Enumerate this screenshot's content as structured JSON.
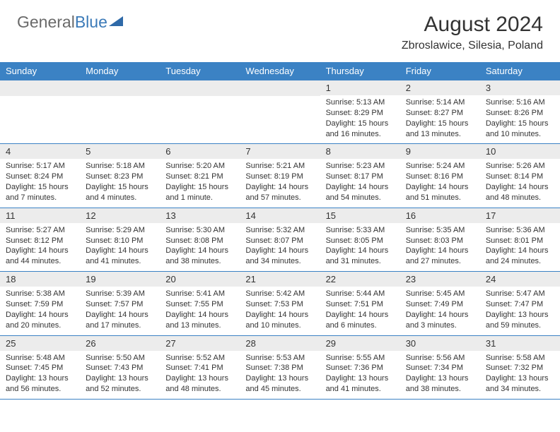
{
  "logo": {
    "general": "General",
    "blue": "Blue"
  },
  "title": "August 2024",
  "location": "Zbroslawice, Silesia, Poland",
  "colors": {
    "header_bg": "#3b82c4",
    "header_fg": "#ffffff",
    "daynum_bg": "#ececec",
    "text": "#333333",
    "rule": "#3b82c4",
    "logo_gray": "#6a6a6a",
    "logo_blue": "#3b7ab8",
    "page_bg": "#ffffff"
  },
  "typography": {
    "title_fontsize": 30,
    "location_fontsize": 16,
    "dow_fontsize": 13,
    "daynum_fontsize": 13,
    "body_fontsize": 11
  },
  "days_of_week": [
    "Sunday",
    "Monday",
    "Tuesday",
    "Wednesday",
    "Thursday",
    "Friday",
    "Saturday"
  ],
  "weeks": [
    [
      null,
      null,
      null,
      null,
      {
        "n": "1",
        "sunrise": "Sunrise: 5:13 AM",
        "sunset": "Sunset: 8:29 PM",
        "daylight": "Daylight: 15 hours and 16 minutes."
      },
      {
        "n": "2",
        "sunrise": "Sunrise: 5:14 AM",
        "sunset": "Sunset: 8:27 PM",
        "daylight": "Daylight: 15 hours and 13 minutes."
      },
      {
        "n": "3",
        "sunrise": "Sunrise: 5:16 AM",
        "sunset": "Sunset: 8:26 PM",
        "daylight": "Daylight: 15 hours and 10 minutes."
      }
    ],
    [
      {
        "n": "4",
        "sunrise": "Sunrise: 5:17 AM",
        "sunset": "Sunset: 8:24 PM",
        "daylight": "Daylight: 15 hours and 7 minutes."
      },
      {
        "n": "5",
        "sunrise": "Sunrise: 5:18 AM",
        "sunset": "Sunset: 8:23 PM",
        "daylight": "Daylight: 15 hours and 4 minutes."
      },
      {
        "n": "6",
        "sunrise": "Sunrise: 5:20 AM",
        "sunset": "Sunset: 8:21 PM",
        "daylight": "Daylight: 15 hours and 1 minute."
      },
      {
        "n": "7",
        "sunrise": "Sunrise: 5:21 AM",
        "sunset": "Sunset: 8:19 PM",
        "daylight": "Daylight: 14 hours and 57 minutes."
      },
      {
        "n": "8",
        "sunrise": "Sunrise: 5:23 AM",
        "sunset": "Sunset: 8:17 PM",
        "daylight": "Daylight: 14 hours and 54 minutes."
      },
      {
        "n": "9",
        "sunrise": "Sunrise: 5:24 AM",
        "sunset": "Sunset: 8:16 PM",
        "daylight": "Daylight: 14 hours and 51 minutes."
      },
      {
        "n": "10",
        "sunrise": "Sunrise: 5:26 AM",
        "sunset": "Sunset: 8:14 PM",
        "daylight": "Daylight: 14 hours and 48 minutes."
      }
    ],
    [
      {
        "n": "11",
        "sunrise": "Sunrise: 5:27 AM",
        "sunset": "Sunset: 8:12 PM",
        "daylight": "Daylight: 14 hours and 44 minutes."
      },
      {
        "n": "12",
        "sunrise": "Sunrise: 5:29 AM",
        "sunset": "Sunset: 8:10 PM",
        "daylight": "Daylight: 14 hours and 41 minutes."
      },
      {
        "n": "13",
        "sunrise": "Sunrise: 5:30 AM",
        "sunset": "Sunset: 8:08 PM",
        "daylight": "Daylight: 14 hours and 38 minutes."
      },
      {
        "n": "14",
        "sunrise": "Sunrise: 5:32 AM",
        "sunset": "Sunset: 8:07 PM",
        "daylight": "Daylight: 14 hours and 34 minutes."
      },
      {
        "n": "15",
        "sunrise": "Sunrise: 5:33 AM",
        "sunset": "Sunset: 8:05 PM",
        "daylight": "Daylight: 14 hours and 31 minutes."
      },
      {
        "n": "16",
        "sunrise": "Sunrise: 5:35 AM",
        "sunset": "Sunset: 8:03 PM",
        "daylight": "Daylight: 14 hours and 27 minutes."
      },
      {
        "n": "17",
        "sunrise": "Sunrise: 5:36 AM",
        "sunset": "Sunset: 8:01 PM",
        "daylight": "Daylight: 14 hours and 24 minutes."
      }
    ],
    [
      {
        "n": "18",
        "sunrise": "Sunrise: 5:38 AM",
        "sunset": "Sunset: 7:59 PM",
        "daylight": "Daylight: 14 hours and 20 minutes."
      },
      {
        "n": "19",
        "sunrise": "Sunrise: 5:39 AM",
        "sunset": "Sunset: 7:57 PM",
        "daylight": "Daylight: 14 hours and 17 minutes."
      },
      {
        "n": "20",
        "sunrise": "Sunrise: 5:41 AM",
        "sunset": "Sunset: 7:55 PM",
        "daylight": "Daylight: 14 hours and 13 minutes."
      },
      {
        "n": "21",
        "sunrise": "Sunrise: 5:42 AM",
        "sunset": "Sunset: 7:53 PM",
        "daylight": "Daylight: 14 hours and 10 minutes."
      },
      {
        "n": "22",
        "sunrise": "Sunrise: 5:44 AM",
        "sunset": "Sunset: 7:51 PM",
        "daylight": "Daylight: 14 hours and 6 minutes."
      },
      {
        "n": "23",
        "sunrise": "Sunrise: 5:45 AM",
        "sunset": "Sunset: 7:49 PM",
        "daylight": "Daylight: 14 hours and 3 minutes."
      },
      {
        "n": "24",
        "sunrise": "Sunrise: 5:47 AM",
        "sunset": "Sunset: 7:47 PM",
        "daylight": "Daylight: 13 hours and 59 minutes."
      }
    ],
    [
      {
        "n": "25",
        "sunrise": "Sunrise: 5:48 AM",
        "sunset": "Sunset: 7:45 PM",
        "daylight": "Daylight: 13 hours and 56 minutes."
      },
      {
        "n": "26",
        "sunrise": "Sunrise: 5:50 AM",
        "sunset": "Sunset: 7:43 PM",
        "daylight": "Daylight: 13 hours and 52 minutes."
      },
      {
        "n": "27",
        "sunrise": "Sunrise: 5:52 AM",
        "sunset": "Sunset: 7:41 PM",
        "daylight": "Daylight: 13 hours and 48 minutes."
      },
      {
        "n": "28",
        "sunrise": "Sunrise: 5:53 AM",
        "sunset": "Sunset: 7:38 PM",
        "daylight": "Daylight: 13 hours and 45 minutes."
      },
      {
        "n": "29",
        "sunrise": "Sunrise: 5:55 AM",
        "sunset": "Sunset: 7:36 PM",
        "daylight": "Daylight: 13 hours and 41 minutes."
      },
      {
        "n": "30",
        "sunrise": "Sunrise: 5:56 AM",
        "sunset": "Sunset: 7:34 PM",
        "daylight": "Daylight: 13 hours and 38 minutes."
      },
      {
        "n": "31",
        "sunrise": "Sunrise: 5:58 AM",
        "sunset": "Sunset: 7:32 PM",
        "daylight": "Daylight: 13 hours and 34 minutes."
      }
    ]
  ]
}
